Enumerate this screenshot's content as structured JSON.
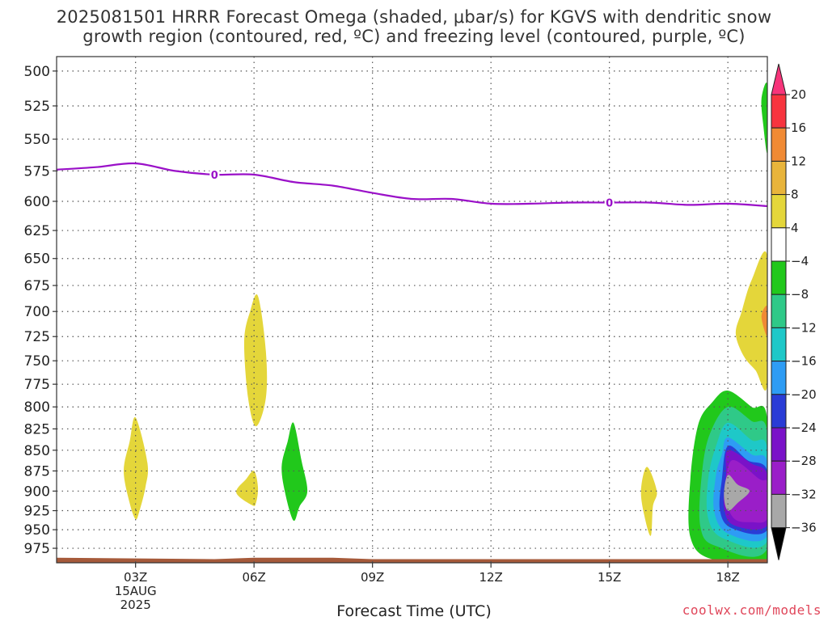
{
  "title_line1": "2025081501 HRRR Forecast Omega (shaded, μbar/s) for KGVS with dendritic snow",
  "title_line2": "growth region (contoured, red, ºC) and freezing level (contoured, purple, ºC)",
  "xlabel": "Forecast Time (UTC)",
  "credit": "coolwx.com/models",
  "chart_data": {
    "type": "heatmap",
    "title": "2025081501 HRRR Forecast Omega (shaded, μbar/s) for KGVS with dendritic snow growth region (contoured, red, ºC) and freezing level (contoured, purple, ºC)",
    "xlabel": "Forecast Time (UTC)",
    "ylabel": "",
    "x_range_hours": [
      1,
      19
    ],
    "x_ticks": [
      {
        "hour": 3,
        "label": "03Z"
      },
      {
        "hour": 6,
        "label": "06Z"
      },
      {
        "hour": 9,
        "label": "09Z"
      },
      {
        "hour": 12,
        "label": "12Z"
      },
      {
        "hour": 15,
        "label": "15Z"
      },
      {
        "hour": 18,
        "label": "18Z"
      }
    ],
    "date_label_lines": [
      "15AUG",
      "2025"
    ],
    "y_ticks_hpa": [
      500,
      525,
      550,
      575,
      600,
      625,
      650,
      675,
      700,
      725,
      750,
      775,
      800,
      825,
      850,
      875,
      900,
      925,
      950,
      975
    ],
    "y_scale": "log-pressure",
    "y_range_hpa": [
      490,
      995
    ],
    "grid": true,
    "colorbar": {
      "levels": [
        "20",
        "16",
        "12",
        "8",
        "4",
        "−4",
        "−8",
        "−12",
        "−16",
        "−20",
        "−24",
        "−28",
        "−32",
        "−36"
      ],
      "colors": [
        "#f7347a",
        "#f7343e",
        "#f08a34",
        "#e8b43b",
        "#e4d63a",
        "#ffffff",
        "#21c81b",
        "#2fc988",
        "#1ec8c8",
        "#2e9cf4",
        "#2a3cd6",
        "#7a12c8",
        "#9a1ec8",
        "#a8a8a8",
        "#000000"
      ]
    },
    "freezing_level": {
      "label": "0",
      "color": "#9a10c8",
      "points": [
        [
          1,
          574
        ],
        [
          2,
          572
        ],
        [
          3,
          569
        ],
        [
          4,
          575
        ],
        [
          5,
          578
        ],
        [
          6,
          578
        ],
        [
          7,
          584
        ],
        [
          8,
          587
        ],
        [
          9,
          593
        ],
        [
          10,
          598
        ],
        [
          11,
          598
        ],
        [
          12,
          602
        ],
        [
          13,
          602
        ],
        [
          14,
          601
        ],
        [
          15,
          601
        ],
        [
          16,
          601
        ],
        [
          17,
          603
        ],
        [
          18,
          602
        ],
        [
          19,
          604
        ]
      ],
      "label_hours": [
        5,
        15
      ]
    },
    "omega_regions": [
      {
        "color": "#e4d63a",
        "points": [
          [
            3,
            812
          ],
          [
            3.3,
            865
          ],
          [
            3.25,
            895
          ],
          [
            3.1,
            925
          ],
          [
            3,
            936
          ],
          [
            2.85,
            915
          ],
          [
            2.7,
            875
          ],
          [
            2.85,
            840
          ]
        ]
      },
      {
        "color": "#e4d63a",
        "points": [
          [
            6.1,
            685
          ],
          [
            6.3,
            740
          ],
          [
            6.3,
            790
          ],
          [
            6.05,
            822
          ],
          [
            5.85,
            790
          ],
          [
            5.75,
            730
          ],
          [
            5.9,
            700
          ]
        ]
      },
      {
        "color": "#e4d63a",
        "points": [
          [
            6,
            875
          ],
          [
            6.1,
            895
          ],
          [
            6.05,
            915
          ],
          [
            5.95,
            918
          ],
          [
            5.55,
            902
          ],
          [
            5.8,
            885
          ]
        ]
      },
      {
        "color": "#21c81b",
        "points": [
          [
            7.0,
            818
          ],
          [
            7.2,
            862
          ],
          [
            7.35,
            900
          ],
          [
            7.15,
            920
          ],
          [
            7.0,
            938
          ],
          [
            6.8,
            905
          ],
          [
            6.7,
            870
          ],
          [
            6.85,
            840
          ]
        ]
      },
      {
        "color": "#e4d63a",
        "points": [
          [
            15.95,
            870
          ],
          [
            16.2,
            900
          ],
          [
            16.1,
            920
          ],
          [
            16.05,
            958
          ],
          [
            15.9,
            935
          ],
          [
            15.8,
            900
          ]
        ]
      },
      {
        "color": "#e4d63a",
        "points": [
          [
            19,
            648
          ],
          [
            18.6,
            670
          ],
          [
            18.35,
            700
          ],
          [
            18.2,
            722
          ],
          [
            18.4,
            745
          ],
          [
            18.7,
            760
          ],
          [
            19,
            775
          ]
        ]
      },
      {
        "color": "#f08a34",
        "points": [
          [
            19,
            695
          ],
          [
            18.85,
            705
          ],
          [
            19,
            725
          ]
        ]
      },
      {
        "color": "#21c81b",
        "points": [
          [
            19,
            510
          ],
          [
            18.85,
            520
          ],
          [
            18.9,
            540
          ],
          [
            19,
            560
          ]
        ]
      },
      {
        "color": "#21c81b",
        "points": [
          [
            18,
            782
          ],
          [
            18.6,
            800
          ],
          [
            19,
            815
          ],
          [
            19,
            990
          ],
          [
            17.6,
            990
          ],
          [
            17.05,
            960
          ],
          [
            17.05,
            885
          ],
          [
            17.25,
            820
          ],
          [
            17.6,
            795
          ]
        ]
      },
      {
        "color": "#2fc988",
        "points": [
          [
            18,
            800
          ],
          [
            18.6,
            816
          ],
          [
            19,
            830
          ],
          [
            19,
            975
          ],
          [
            17.7,
            972
          ],
          [
            17.3,
            945
          ],
          [
            17.35,
            875
          ],
          [
            17.55,
            830
          ]
        ]
      },
      {
        "color": "#1ec8c8",
        "points": [
          [
            18,
            818
          ],
          [
            18.6,
            838
          ],
          [
            19,
            848
          ],
          [
            19,
            965
          ],
          [
            17.9,
            962
          ],
          [
            17.5,
            935
          ],
          [
            17.5,
            885
          ],
          [
            17.7,
            845
          ]
        ]
      },
      {
        "color": "#2e9cf4",
        "points": [
          [
            18,
            835
          ],
          [
            18.6,
            855
          ],
          [
            19,
            865
          ],
          [
            19,
            958
          ],
          [
            18,
            955
          ],
          [
            17.65,
            925
          ],
          [
            17.7,
            880
          ],
          [
            17.85,
            855
          ]
        ]
      },
      {
        "color": "#2a3cd6",
        "points": [
          [
            18,
            845
          ],
          [
            18.5,
            862
          ],
          [
            19,
            875
          ],
          [
            19,
            950
          ],
          [
            18.1,
            948
          ],
          [
            17.8,
            925
          ],
          [
            17.85,
            885
          ]
        ]
      },
      {
        "color": "#7a12c8",
        "points": [
          [
            18,
            850
          ],
          [
            18.6,
            866
          ],
          [
            19,
            880
          ],
          [
            19,
            944
          ],
          [
            18.15,
            944
          ],
          [
            17.9,
            920
          ],
          [
            17.95,
            880
          ]
        ]
      },
      {
        "color": "#9a1ec8",
        "points": [
          [
            18.1,
            862
          ],
          [
            18.8,
            885
          ],
          [
            19,
            890
          ],
          [
            19,
            935
          ],
          [
            18.6,
            940
          ],
          [
            18.15,
            935
          ],
          [
            17.95,
            905
          ]
        ]
      },
      {
        "color": "#a8a8a8",
        "points": [
          [
            18,
            880
          ],
          [
            18.25,
            892
          ],
          [
            18.55,
            900
          ],
          [
            18.25,
            915
          ],
          [
            18.0,
            925
          ],
          [
            17.9,
            905
          ]
        ]
      }
    ],
    "ground": {
      "color": "#a65a3a",
      "points": [
        [
          1,
          988
        ],
        [
          5,
          990
        ],
        [
          6,
          988
        ],
        [
          8,
          988
        ],
        [
          9,
          990
        ],
        [
          19,
          990
        ]
      ]
    }
  }
}
